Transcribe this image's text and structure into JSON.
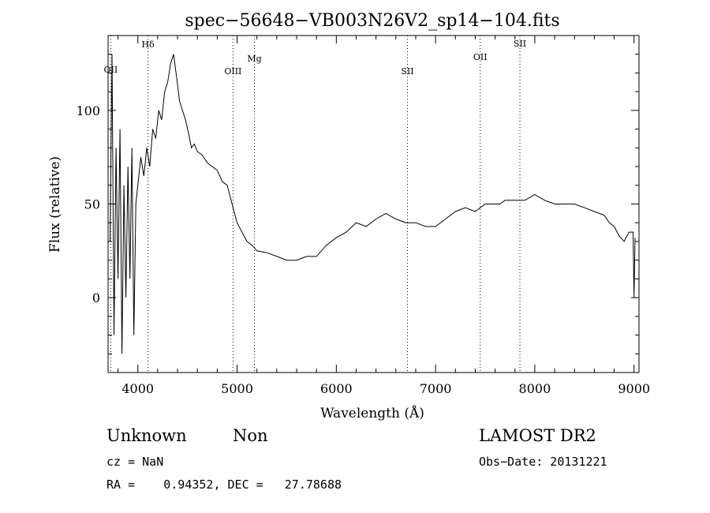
{
  "chart_data": {
    "type": "line",
    "title": "spec−56648−VB003N26V2_sp14−104.fits",
    "xlabel": "Wavelength (Å)",
    "ylabel": "Flux (relative)",
    "xlim": [
      3700,
      9050
    ],
    "ylim": [
      -40,
      140
    ],
    "x_ticks": [
      4000,
      5000,
      6000,
      7000,
      8000,
      9000
    ],
    "x_tick_labels": [
      "4000",
      "5000",
      "6000",
      "7000",
      "8000",
      "9000"
    ],
    "y_ticks": [
      0,
      50,
      100
    ],
    "y_tick_labels": [
      "0",
      "50",
      "100"
    ],
    "grid": false,
    "line_color": "#000000",
    "spectral_lines": [
      {
        "label": "OII",
        "wavelength": 3727
      },
      {
        "label": "Hδ",
        "wavelength": 4102
      },
      {
        "label": "OIII",
        "wavelength": 4959
      },
      {
        "label": "Mg",
        "wavelength": 5175
      },
      {
        "label": "SII",
        "wavelength": 6717
      },
      {
        "label": "OII",
        "wavelength": 7450
      },
      {
        "label": "SII",
        "wavelength": 7850
      }
    ],
    "series": [
      {
        "x": [
          3720,
          3740,
          3760,
          3780,
          3800,
          3820,
          3840,
          3860,
          3880,
          3900,
          3920,
          3940,
          3960,
          3980,
          4000,
          4030,
          4060,
          4090,
          4120,
          4150,
          4180,
          4210,
          4240,
          4270,
          4300,
          4330,
          4360,
          4390,
          4420,
          4450,
          4480,
          4510,
          4540,
          4570,
          4600,
          4650,
          4700,
          4750,
          4800,
          4850,
          4900,
          4950,
          5000,
          5050,
          5100,
          5150,
          5200,
          5300,
          5400,
          5500,
          5600,
          5700,
          5800,
          5900,
          6000,
          6100,
          6200,
          6300,
          6400,
          6500,
          6600,
          6700,
          6800,
          6900,
          7000,
          7100,
          7200,
          7300,
          7400,
          7500,
          7600,
          7650,
          7700,
          7800,
          7900,
          8000,
          8100,
          8200,
          8300,
          8400,
          8500,
          8600,
          8700,
          8750,
          8800,
          8850,
          8900,
          8950,
          8990,
          9000,
          9010
        ],
        "y": [
          30,
          130,
          -20,
          80,
          10,
          90,
          -30,
          60,
          0,
          70,
          10,
          80,
          -20,
          50,
          60,
          75,
          65,
          80,
          70,
          90,
          85,
          100,
          95,
          110,
          115,
          125,
          130,
          118,
          105,
          100,
          95,
          88,
          80,
          82,
          78,
          76,
          72,
          70,
          68,
          62,
          60,
          50,
          40,
          35,
          30,
          28,
          25,
          24,
          22,
          20,
          20,
          22,
          22,
          28,
          32,
          35,
          40,
          38,
          42,
          45,
          42,
          40,
          40,
          38,
          38,
          42,
          46,
          48,
          46,
          50,
          50,
          50,
          52,
          52,
          52,
          55,
          52,
          50,
          50,
          50,
          48,
          46,
          44,
          40,
          38,
          33,
          30,
          35,
          35,
          0,
          32
        ]
      }
    ]
  },
  "footer": {
    "object_class": "Unknown",
    "subclass": "Non",
    "survey": "LAMOST DR2",
    "cz": "cz = NaN",
    "obs_date": "Obs−Date: 20131221",
    "coords": "RA =    0.94352, DEC =   27.78688"
  }
}
